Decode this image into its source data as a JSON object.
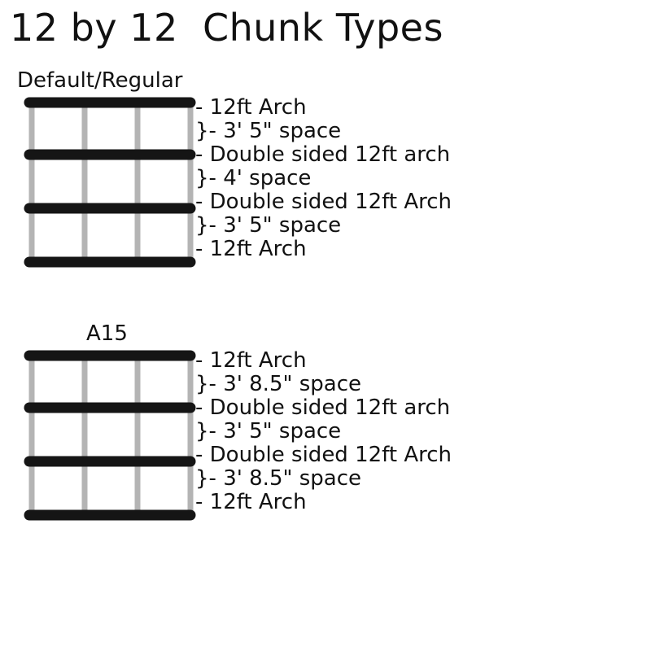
{
  "title": "12 by 12  Chunk Types",
  "colors": {
    "arch_bar": "#151515",
    "column": "#b4b4b4",
    "text": "#111111"
  },
  "chunks": [
    {
      "name": "Default/Regular",
      "labels": [
        "- 12ft Arch",
        "}- 3' 5\" space",
        "- Double sided 12ft arch",
        "}- 4' space",
        "- Double sided 12ft Arch",
        "}- 3' 5\" space",
        "- 12ft Arch"
      ]
    },
    {
      "name": "A15",
      "labels": [
        "- 12ft Arch",
        "}- 3' 8.5\" space",
        "- Double sided 12ft arch",
        "}- 3' 5\" space",
        "- Double sided 12ft Arch",
        "}- 3' 8.5\" space",
        "- 12ft Arch"
      ]
    }
  ]
}
